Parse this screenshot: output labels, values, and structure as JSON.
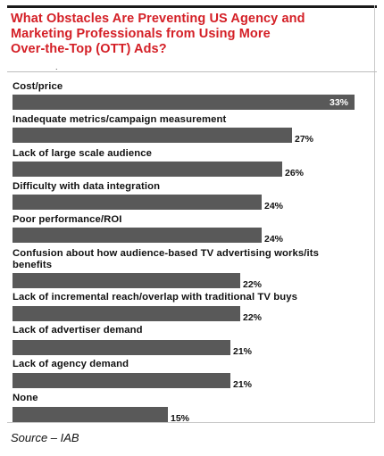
{
  "chart_data": {
    "type": "bar",
    "orientation": "horizontal",
    "title_lines": [
      "What Obstacles Are Preventing US Agency and",
      "Marketing Professionals from Using More",
      "Over-the-Top (OTT) Ads?"
    ],
    "categories": [
      [
        "Cost/price"
      ],
      [
        "Inadequate metrics/campaign measurement"
      ],
      [
        "Lack of large scale audience"
      ],
      [
        "Difficulty with data integration"
      ],
      [
        "Poor performance/ROI"
      ],
      [
        "Confusion about how audience-based TV advertising works/its",
        "benefits"
      ],
      [
        "Lack of incremental reach/overlap with traditional TV buys"
      ],
      [
        "Lack of advertiser demand"
      ],
      [
        "Lack of agency demand"
      ],
      [
        "None"
      ]
    ],
    "values": [
      33,
      27,
      26,
      24,
      24,
      22,
      22,
      21,
      21,
      15
    ],
    "value_labels": [
      "33%",
      "27%",
      "26%",
      "24%",
      "24%",
      "22%",
      "22%",
      "21%",
      "21%",
      "15%"
    ],
    "unit": "%",
    "xlim": [
      0,
      33
    ],
    "grid": false,
    "legend": "none",
    "bar_color": "#595959",
    "title_color": "#d41f26"
  },
  "source_note": "Source – IAB",
  "header_tick": "."
}
